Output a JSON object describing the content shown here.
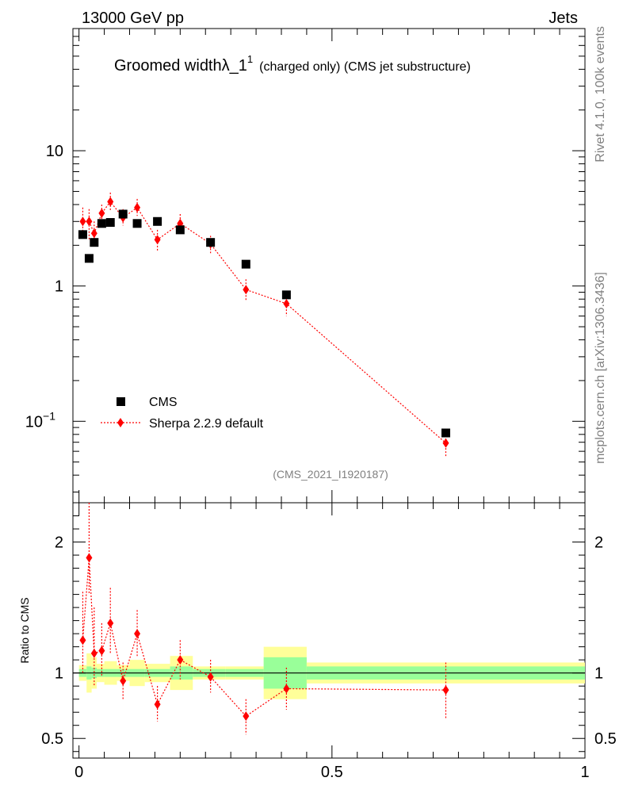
{
  "header": {
    "left": "13000 GeV pp",
    "right": "Jets",
    "side_top": "Rivet 4.1.0,  100k events",
    "side_bottom": "mcplots.cern.ch [arXiv:1306.3436]"
  },
  "chart_data": {
    "type": "scatter",
    "title_main": "Groomed width",
    "title_lambda": "λ_1",
    "title_sup": "1",
    "title_rest": "(charged only) (CMS jet substructure)",
    "watermark": "(CMS_2021_I1920187)",
    "legend": [
      {
        "label": "CMS",
        "color": "#000000",
        "marker": "square"
      },
      {
        "label": "Sherpa 2.2.9 default",
        "color": "#ff0000",
        "marker": "diamond"
      }
    ],
    "main": {
      "yscale": "log",
      "ylim": [
        0.025,
        80
      ],
      "xlim": [
        -0.012,
        1.0
      ],
      "yticks": [
        {
          "v": 10,
          "base": "10",
          "exp": ""
        },
        {
          "v": 1,
          "base": "1",
          "exp": ""
        },
        {
          "v": 0.1,
          "base": "10",
          "exp": "−1"
        }
      ]
    },
    "ratio": {
      "ylabel": "Ratio to CMS",
      "ylim": [
        0.35,
        2.3
      ],
      "yticks": [
        {
          "v": 2,
          "label": "2"
        },
        {
          "v": 1,
          "label": "1"
        },
        {
          "v": 0.5,
          "label": "0.5"
        }
      ]
    },
    "xticks": [
      {
        "v": 0,
        "label": "0"
      },
      {
        "v": 0.5,
        "label": "0.5"
      },
      {
        "v": 1,
        "label": "1"
      }
    ],
    "cms": [
      {
        "x": 0.0075,
        "xlo": 0.0,
        "xhi": 0.015,
        "y": 2.4,
        "band_g": 0.03,
        "band_y": 0.06
      },
      {
        "x": 0.02,
        "xlo": 0.015,
        "xhi": 0.025,
        "y": 1.6,
        "band_g": 0.05,
        "band_y": 0.15
      },
      {
        "x": 0.03,
        "xlo": 0.025,
        "xhi": 0.035,
        "y": 2.1,
        "band_g": 0.04,
        "band_y": 0.12
      },
      {
        "x": 0.045,
        "xlo": 0.035,
        "xhi": 0.05,
        "y": 2.9,
        "band_g": 0.03,
        "band_y": 0.07
      },
      {
        "x": 0.062,
        "xlo": 0.05,
        "xhi": 0.075,
        "y": 2.95,
        "band_g": 0.03,
        "band_y": 0.09
      },
      {
        "x": 0.087,
        "xlo": 0.075,
        "xhi": 0.1,
        "y": 3.4,
        "band_g": 0.03,
        "band_y": 0.06
      },
      {
        "x": 0.115,
        "xlo": 0.1,
        "xhi": 0.13,
        "y": 2.9,
        "band_g": 0.03,
        "band_y": 0.1
      },
      {
        "x": 0.155,
        "xlo": 0.13,
        "xhi": 0.18,
        "y": 3.0,
        "band_g": 0.03,
        "band_y": 0.07
      },
      {
        "x": 0.2,
        "xlo": 0.18,
        "xhi": 0.225,
        "y": 2.6,
        "band_g": 0.05,
        "band_y": 0.13
      },
      {
        "x": 0.26,
        "xlo": 0.225,
        "xhi": 0.29,
        "y": 2.1,
        "band_g": 0.03,
        "band_y": 0.05
      },
      {
        "x": 0.33,
        "xlo": 0.29,
        "xhi": 0.365,
        "y": 1.45,
        "band_g": 0.03,
        "band_y": 0.05
      },
      {
        "x": 0.41,
        "xlo": 0.365,
        "xhi": 0.45,
        "y": 0.86,
        "band_g": 0.12,
        "band_y": 0.2
      },
      {
        "x": 0.725,
        "xlo": 0.45,
        "xhi": 1.0,
        "y": 0.082,
        "band_g": 0.05,
        "band_y": 0.08
      }
    ],
    "sherpa": [
      {
        "x": 0.0075,
        "y": 3.0,
        "ylo": 2.4,
        "yhi": 3.8,
        "r": 1.25,
        "rlo": 1.0,
        "rhi": 1.62
      },
      {
        "x": 0.02,
        "y": 3.0,
        "ylo": 2.2,
        "yhi": 3.7,
        "r": 1.88,
        "rlo": 1.6,
        "rhi": 2.3
      },
      {
        "x": 0.03,
        "y": 2.45,
        "ylo": 2.0,
        "yhi": 3.0,
        "r": 1.15,
        "rlo": 0.9,
        "rhi": 1.5
      },
      {
        "x": 0.045,
        "y": 3.45,
        "ylo": 2.9,
        "yhi": 4.0,
        "r": 1.17,
        "rlo": 0.98,
        "rhi": 1.38
      },
      {
        "x": 0.062,
        "y": 4.2,
        "ylo": 3.6,
        "yhi": 4.9,
        "r": 1.38,
        "rlo": 1.15,
        "rhi": 1.65
      },
      {
        "x": 0.087,
        "y": 3.2,
        "ylo": 2.8,
        "yhi": 3.7,
        "r": 0.94,
        "rlo": 0.8,
        "rhi": 1.08
      },
      {
        "x": 0.115,
        "y": 3.8,
        "ylo": 3.3,
        "yhi": 4.4,
        "r": 1.3,
        "rlo": 1.13,
        "rhi": 1.48
      },
      {
        "x": 0.155,
        "y": 2.2,
        "ylo": 1.8,
        "yhi": 2.6,
        "r": 0.76,
        "rlo": 0.63,
        "rhi": 0.9
      },
      {
        "x": 0.2,
        "y": 2.9,
        "ylo": 2.5,
        "yhi": 3.4,
        "r": 1.1,
        "rlo": 0.95,
        "rhi": 1.25
      },
      {
        "x": 0.26,
        "y": 2.05,
        "ylo": 1.75,
        "yhi": 2.35,
        "r": 0.97,
        "rlo": 0.85,
        "rhi": 1.1
      },
      {
        "x": 0.33,
        "y": 0.94,
        "ylo": 0.78,
        "yhi": 1.12,
        "r": 0.67,
        "rlo": 0.53,
        "rhi": 0.8
      },
      {
        "x": 0.41,
        "y": 0.74,
        "ylo": 0.6,
        "yhi": 0.88,
        "r": 0.88,
        "rlo": 0.72,
        "rhi": 1.04
      },
      {
        "x": 0.725,
        "y": 0.069,
        "ylo": 0.055,
        "yhi": 0.083,
        "r": 0.87,
        "rlo": 0.65,
        "rhi": 1.08
      }
    ]
  }
}
